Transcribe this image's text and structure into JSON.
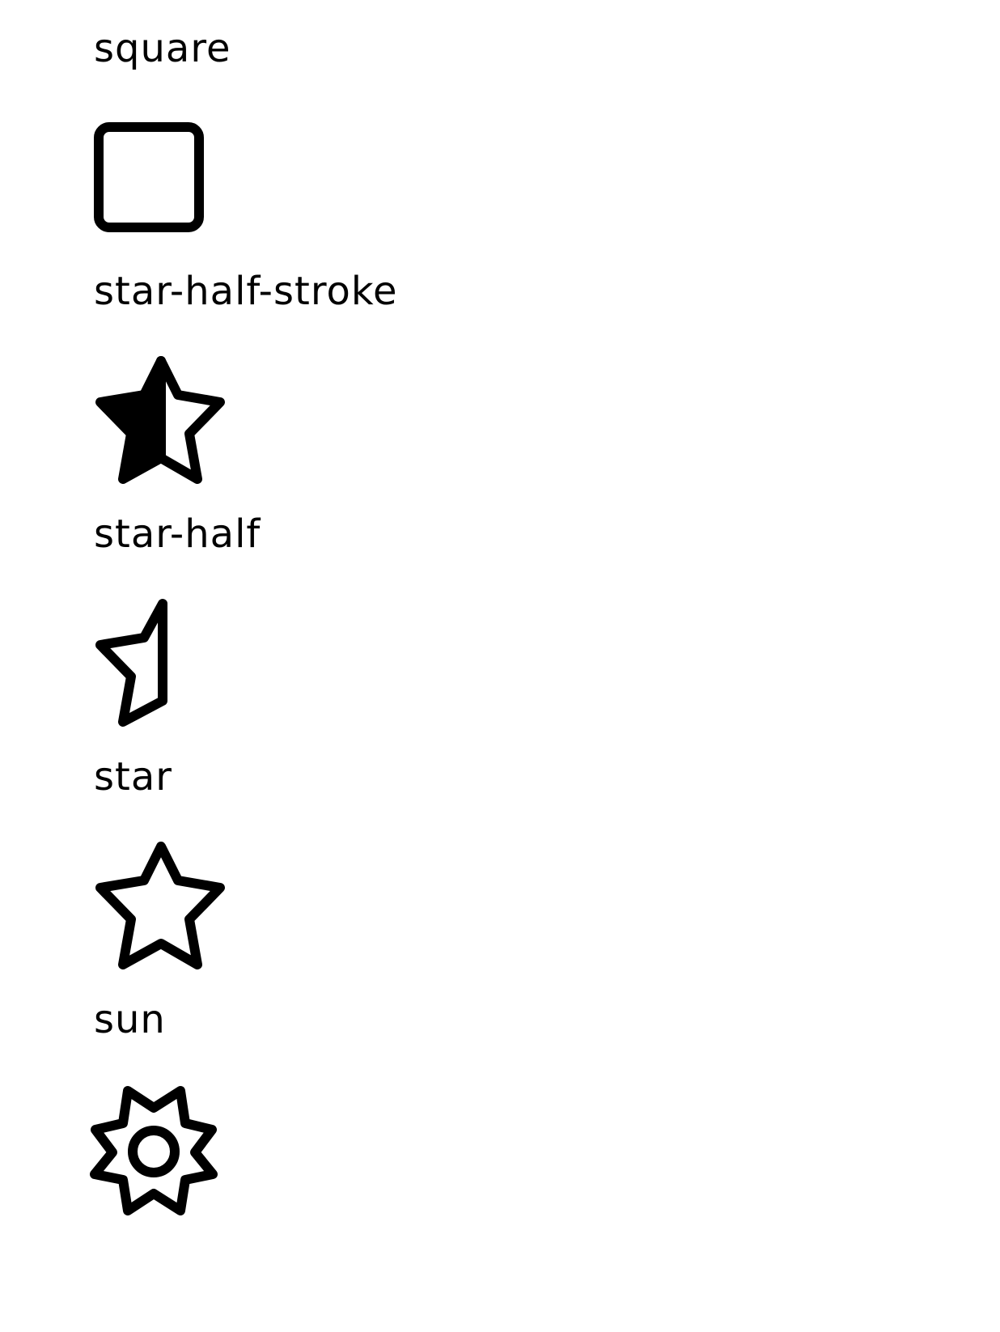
{
  "icons": [
    {
      "label": "square",
      "icon": "square-icon"
    },
    {
      "label": "star-half-stroke",
      "icon": "star-half-stroke-icon"
    },
    {
      "label": "star-half",
      "icon": "star-half-icon"
    },
    {
      "label": "star",
      "icon": "star-icon"
    },
    {
      "label": "sun",
      "icon": "sun-icon"
    }
  ],
  "colors": {
    "background": "#ffffff",
    "ink": "#000000"
  }
}
